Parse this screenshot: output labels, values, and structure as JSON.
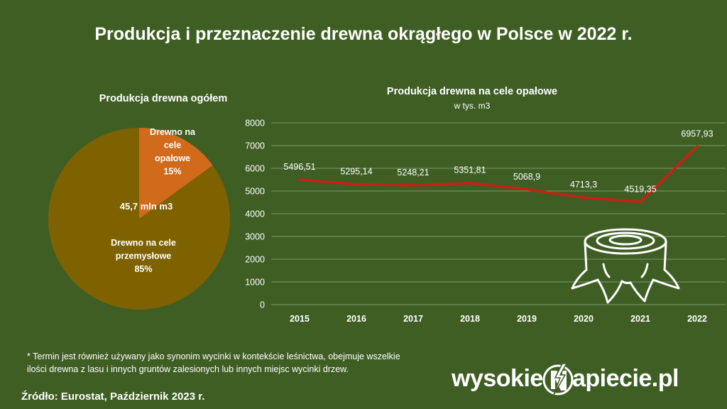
{
  "header": {
    "title": "Produkcja i przeznaczenie drewna okrągłego w Polsce w 2022 r."
  },
  "pie": {
    "title": "Produkcja drewna ogółem",
    "center_label": "45,7 mln m3",
    "colors": {
      "opalowe": "#d16b1b",
      "przemyslowe": "#7f6200"
    }
  },
  "line": {
    "title": "Produkcja drewna na cele opałowe",
    "subtitle": "w tys. m3",
    "line_color": "#cc1f14"
  },
  "chart_data": [
    {
      "type": "pie",
      "title": "Produkcja drewna ogółem",
      "slices": [
        {
          "label_lines": [
            "Drewno na",
            "cele",
            "opałowe",
            "15%"
          ],
          "value": 15
        },
        {
          "label_lines": [
            "Drewno na cele",
            "przemysłowe",
            "85%"
          ],
          "value": 85
        }
      ]
    },
    {
      "type": "line",
      "title": "Produkcja drewna na cele opałowe",
      "subtitle": "w tys. m3",
      "x": [
        "2015",
        "2016",
        "2017",
        "2018",
        "2019",
        "2020",
        "2021",
        "2022"
      ],
      "values": [
        5496.51,
        5295.14,
        5248.21,
        5351.81,
        5068.9,
        4713.3,
        4519.35,
        6957.93
      ],
      "value_labels": [
        "5496,51",
        "5295,14",
        "5248,21",
        "5351,81",
        "5068,9",
        "4713,3",
        "4519,35",
        "6957,93"
      ],
      "ylim": [
        0,
        8000
      ],
      "yticks": [
        0,
        1000,
        2000,
        3000,
        4000,
        5000,
        6000,
        7000,
        8000
      ],
      "grid": true
    }
  ],
  "footer": {
    "footnote_line1": "* Termin jest również używany jako synonim wycinki w kontekście leśnictwa, obejmuje wszelkie",
    "footnote_line2": "ilości drewna z lasu i innych gruntów zalesionych lub innych miejsc wycinki drzew.",
    "source": "Źródło:  Eurostat, Październik 2023 r.",
    "brand_left": "wysokie",
    "brand_right": "apiecie.pl",
    "brand_icon": "lightning-n-logo"
  }
}
